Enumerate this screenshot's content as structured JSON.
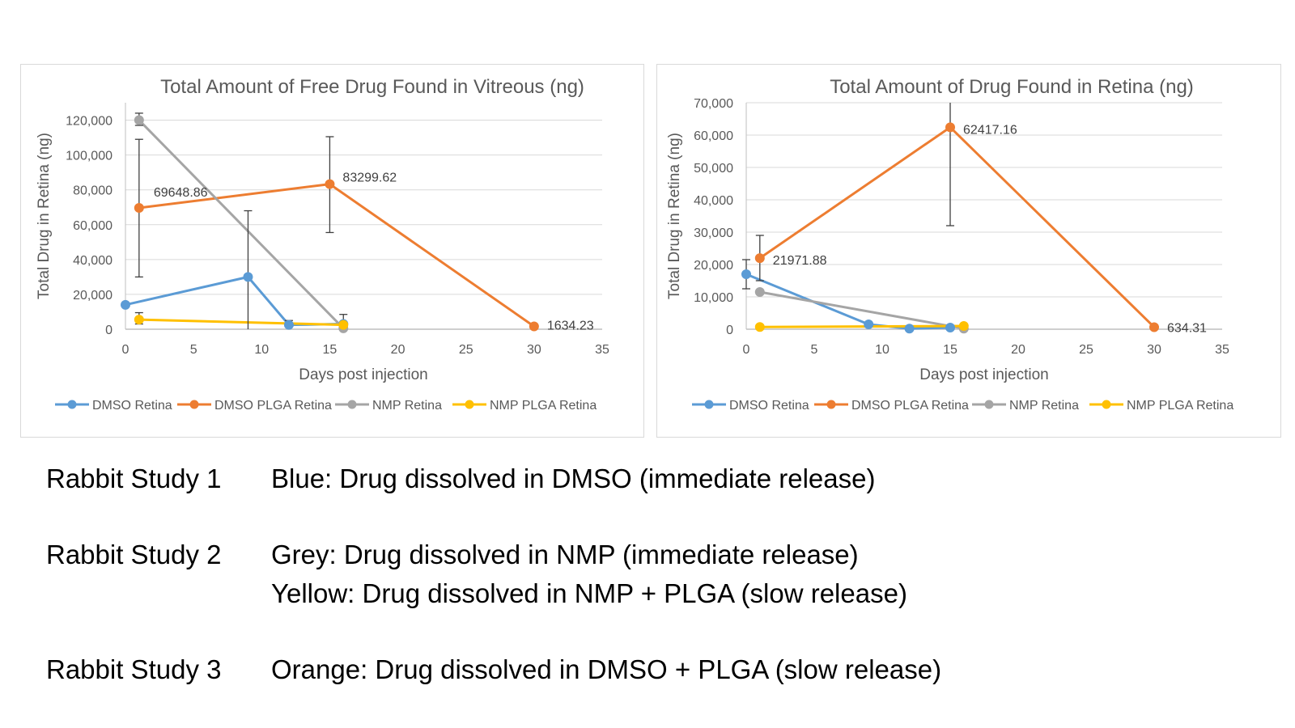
{
  "chart_data": [
    {
      "type": "line",
      "title": "Total Amount of Free Drug Found in Vitreous (ng)",
      "xlabel": "Days post injection",
      "ylabel": "Total Drug in Retina (ng)",
      "xlim": [
        0,
        35
      ],
      "xticks": [
        "0",
        "5",
        "10",
        "15",
        "20",
        "25",
        "30",
        "35"
      ],
      "ylim": [
        0,
        130000
      ],
      "yticks": [
        "0",
        "20,000",
        "40,000",
        "60,000",
        "80,000",
        "100,000",
        "120,000"
      ],
      "grid": true,
      "legend": "bottom",
      "series": [
        {
          "name": "DMSO Retina",
          "color": "#5b9bd5",
          "x": [
            0,
            9,
            12,
            16
          ],
          "y": [
            14000,
            30000,
            2500,
            3000
          ],
          "errors": [
            null,
            [
              0,
              68000
            ],
            [
              0,
              5000
            ],
            null
          ],
          "labels": []
        },
        {
          "name": "DMSO PLGA Retina",
          "color": "#ed7d31",
          "x": [
            1,
            15,
            30
          ],
          "y": [
            69648.86,
            83299.62,
            1634.23
          ],
          "errors": [
            [
              30000,
              109000
            ],
            [
              55500,
              110500
            ],
            null
          ],
          "labels": [
            "69648.86",
            "83299.62",
            "1634.23"
          ]
        },
        {
          "name": "NMP Retina",
          "color": "#a5a5a5",
          "x": [
            1,
            16
          ],
          "y": [
            120000,
            500
          ],
          "errors": [
            [
              117000,
              124000
            ],
            [
              0,
              8500
            ]
          ],
          "labels": []
        },
        {
          "name": "NMP PLGA Retina",
          "color": "#ffc000",
          "x": [
            1,
            16
          ],
          "y": [
            5500,
            2500
          ],
          "errors": [
            [
              3000,
              9500
            ],
            null
          ],
          "labels": []
        }
      ]
    },
    {
      "type": "line",
      "title": "Total Amount of Drug Found in Retina (ng)",
      "xlabel": "Days post injection",
      "ylabel": "Total Drug in Retina (ng)",
      "xlim": [
        0,
        35
      ],
      "xticks": [
        "0",
        "5",
        "10",
        "15",
        "20",
        "25",
        "30",
        "35"
      ],
      "ylim": [
        0,
        70000
      ],
      "yticks": [
        "0",
        "10,000",
        "20,000",
        "30,000",
        "40,000",
        "50,000",
        "60,000",
        "70,000"
      ],
      "grid": true,
      "legend": "bottom",
      "series": [
        {
          "name": "DMSO Retina",
          "color": "#5b9bd5",
          "x": [
            0,
            9,
            12,
            15
          ],
          "y": [
            17000,
            1500,
            200,
            500
          ],
          "errors": [
            [
              12500,
              21500
            ],
            null,
            null,
            null
          ],
          "labels": []
        },
        {
          "name": "DMSO PLGA Retina",
          "color": "#ed7d31",
          "x": [
            1,
            15,
            30
          ],
          "y": [
            21971.88,
            62417.16,
            634.31
          ],
          "errors": [
            [
              15000,
              29000
            ],
            [
              32000,
              70000
            ],
            null
          ],
          "labels": [
            "21971.88",
            "62417.16",
            "634.31"
          ]
        },
        {
          "name": "NMP Retina",
          "color": "#a5a5a5",
          "x": [
            1,
            16
          ],
          "y": [
            11500,
            200
          ],
          "errors": [
            null,
            null
          ],
          "labels": []
        },
        {
          "name": "NMP PLGA Retina",
          "color": "#ffc000",
          "x": [
            1,
            16
          ],
          "y": [
            700,
            1000
          ],
          "errors": [
            null,
            null
          ],
          "labels": []
        }
      ]
    }
  ],
  "notes": [
    {
      "label": "Rabbit Study 1",
      "lines": [
        "Blue: Drug dissolved in DMSO (immediate release)"
      ]
    },
    {
      "label": "Rabbit Study 2",
      "lines": [
        "Grey: Drug dissolved in NMP (immediate release)",
        "Yellow: Drug dissolved in NMP + PLGA (slow release)"
      ]
    },
    {
      "label": "Rabbit Study 3",
      "lines": [
        "Orange: Drug dissolved in DMSO + PLGA (slow release)"
      ]
    }
  ]
}
